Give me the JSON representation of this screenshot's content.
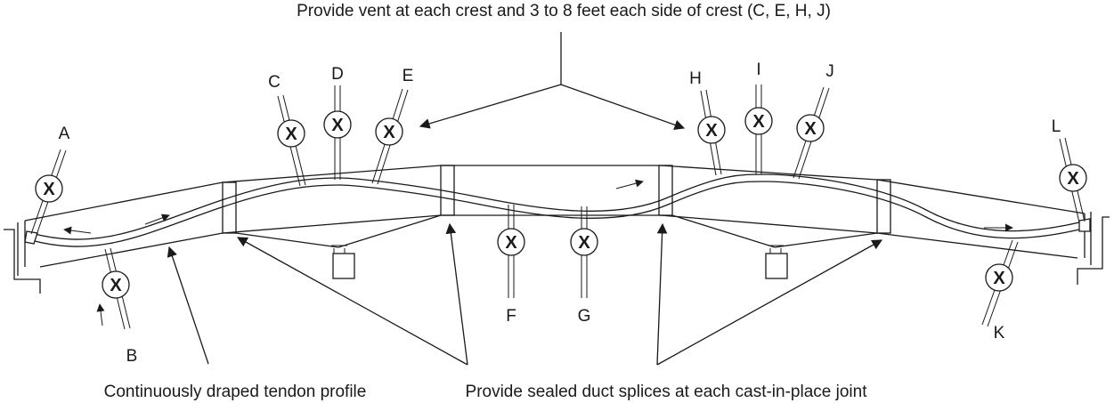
{
  "captions": {
    "vent_note": "Provide vent at each crest and 3 to 8 feet each side of crest (C, E, H, J)",
    "tendon_note": "Continuously draped tendon profile",
    "splice_note": "Provide sealed duct splices at each cast-in-place joint"
  },
  "vents": [
    {
      "id": "A",
      "label": "A"
    },
    {
      "id": "B",
      "label": "B"
    },
    {
      "id": "C",
      "label": "C"
    },
    {
      "id": "D",
      "label": "D"
    },
    {
      "id": "E",
      "label": "E"
    },
    {
      "id": "F",
      "label": "F"
    },
    {
      "id": "G",
      "label": "G"
    },
    {
      "id": "H",
      "label": "H"
    },
    {
      "id": "I",
      "label": "I"
    },
    {
      "id": "J",
      "label": "J"
    },
    {
      "id": "K",
      "label": "K"
    },
    {
      "id": "L",
      "label": "L"
    }
  ],
  "valve_symbol": "X"
}
